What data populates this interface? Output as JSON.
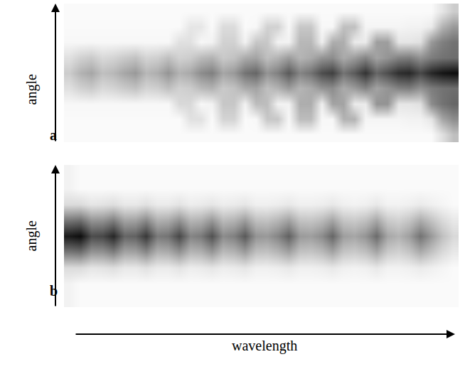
{
  "chart_data": [
    {
      "type": "heatmap",
      "panel": "a",
      "y_label": "angle",
      "tick_labels": false,
      "color": "#000000",
      "zlim": [
        0,
        100
      ],
      "cells": [
        [
          2,
          2,
          2,
          2,
          2,
          2,
          2,
          2,
          2,
          2,
          2,
          2,
          2,
          2,
          2,
          2,
          2,
          2,
          2,
          2,
          2,
          2,
          2,
          2,
          2,
          2,
          2,
          2,
          2,
          2,
          2,
          2,
          2,
          2,
          12,
          25
        ],
        [
          2,
          2,
          2,
          2,
          2,
          2,
          2,
          2,
          2,
          2,
          2,
          12,
          12,
          2,
          17,
          17,
          2,
          3,
          22,
          22,
          3,
          26,
          26,
          3,
          3,
          30,
          30,
          4,
          4,
          4,
          4,
          5,
          5,
          10,
          35,
          45
        ],
        [
          3,
          3,
          3,
          3,
          3,
          3,
          3,
          3,
          3,
          3,
          15,
          15,
          3,
          5,
          22,
          22,
          5,
          26,
          26,
          5,
          5,
          32,
          32,
          6,
          36,
          36,
          8,
          8,
          42,
          42,
          10,
          10,
          12,
          45,
          55,
          60
        ],
        [
          12,
          18,
          21,
          15,
          17,
          21,
          24,
          17,
          19,
          25,
          18,
          20,
          27,
          30,
          21,
          24,
          33,
          36,
          25,
          30,
          39,
          29,
          33,
          42,
          45,
          33,
          39,
          48,
          36,
          42,
          49,
          51,
          43,
          51,
          55,
          57
        ],
        [
          20,
          30,
          35,
          25,
          28,
          35,
          40,
          28,
          32,
          42,
          30,
          34,
          45,
          50,
          35,
          40,
          55,
          60,
          42,
          50,
          65,
          48,
          55,
          70,
          75,
          55,
          65,
          80,
          60,
          70,
          82,
          85,
          72,
          85,
          92,
          95
        ],
        [
          12,
          18,
          21,
          15,
          17,
          21,
          24,
          17,
          19,
          25,
          18,
          20,
          27,
          30,
          21,
          24,
          33,
          36,
          25,
          30,
          39,
          29,
          33,
          42,
          45,
          33,
          39,
          48,
          36,
          42,
          49,
          51,
          43,
          51,
          55,
          57
        ],
        [
          3,
          3,
          3,
          3,
          3,
          3,
          3,
          3,
          3,
          3,
          12,
          12,
          3,
          5,
          18,
          18,
          5,
          22,
          22,
          5,
          5,
          28,
          28,
          6,
          32,
          32,
          8,
          8,
          38,
          38,
          10,
          10,
          12,
          40,
          50,
          55
        ],
        [
          2,
          2,
          2,
          2,
          2,
          2,
          2,
          2,
          2,
          2,
          2,
          10,
          10,
          2,
          14,
          14,
          2,
          3,
          18,
          18,
          3,
          22,
          22,
          3,
          3,
          25,
          25,
          4,
          4,
          4,
          4,
          5,
          5,
          8,
          30,
          40
        ],
        [
          2,
          2,
          2,
          2,
          2,
          2,
          2,
          2,
          2,
          2,
          2,
          2,
          2,
          2,
          2,
          2,
          2,
          2,
          2,
          2,
          2,
          2,
          2,
          2,
          2,
          2,
          2,
          2,
          2,
          2,
          2,
          2,
          2,
          2,
          10,
          20
        ]
      ]
    },
    {
      "type": "heatmap",
      "panel": "b",
      "y_label": "angle",
      "x_label": "wavelength",
      "tick_labels": false,
      "color": "#000000",
      "zlim": [
        0,
        100
      ],
      "cells": [
        [
          5,
          2,
          2,
          2,
          2,
          2,
          2,
          2,
          2,
          2,
          2,
          2,
          2,
          2,
          2,
          2,
          2,
          2,
          2,
          2,
          2,
          2,
          2,
          2,
          2,
          2,
          2,
          2,
          2,
          2,
          2,
          2,
          2,
          2,
          2,
          2
        ],
        [
          5,
          2,
          2,
          2,
          2,
          2,
          2,
          2,
          2,
          2,
          2,
          2,
          2,
          2,
          2,
          2,
          2,
          2,
          2,
          2,
          2,
          2,
          2,
          2,
          2,
          2,
          2,
          2,
          2,
          2,
          2,
          2,
          2,
          2,
          2,
          2
        ],
        [
          14,
          14,
          10,
          11,
          13,
          9,
          9,
          12,
          8,
          8,
          11,
          7,
          8,
          10,
          7,
          8,
          10,
          6,
          6,
          7,
          9,
          6,
          6,
          7,
          9,
          6,
          5,
          6,
          9,
          5,
          5,
          6,
          8,
          6,
          4,
          2
        ],
        [
          54,
          57,
          42,
          43,
          51,
          36,
          37,
          47,
          31,
          33,
          43,
          29,
          31,
          41,
          27,
          30,
          39,
          25,
          24,
          29,
          37,
          24,
          23,
          27,
          36,
          23,
          21,
          25,
          35,
          21,
          18,
          23,
          33,
          24,
          15,
          9
        ],
        [
          90,
          95,
          70,
          72,
          85,
          60,
          62,
          78,
          52,
          55,
          72,
          48,
          52,
          68,
          45,
          50,
          65,
          42,
          40,
          48,
          62,
          40,
          38,
          45,
          60,
          38,
          35,
          42,
          58,
          35,
          30,
          38,
          55,
          40,
          25,
          15
        ],
        [
          54,
          57,
          42,
          43,
          51,
          36,
          37,
          47,
          31,
          33,
          43,
          29,
          31,
          41,
          27,
          30,
          39,
          25,
          24,
          29,
          37,
          24,
          23,
          27,
          36,
          23,
          21,
          25,
          35,
          21,
          18,
          23,
          33,
          24,
          15,
          9
        ],
        [
          14,
          14,
          10,
          11,
          13,
          9,
          9,
          12,
          8,
          8,
          11,
          7,
          8,
          10,
          7,
          8,
          10,
          6,
          6,
          7,
          9,
          6,
          6,
          7,
          9,
          6,
          5,
          6,
          9,
          5,
          5,
          6,
          8,
          6,
          4,
          2
        ],
        [
          5,
          2,
          2,
          2,
          2,
          2,
          2,
          2,
          2,
          2,
          2,
          2,
          2,
          2,
          2,
          2,
          2,
          2,
          2,
          2,
          2,
          2,
          2,
          2,
          2,
          2,
          2,
          2,
          2,
          2,
          2,
          2,
          2,
          2,
          2,
          2
        ],
        [
          5,
          2,
          2,
          2,
          2,
          2,
          2,
          2,
          2,
          2,
          2,
          2,
          2,
          2,
          2,
          2,
          2,
          2,
          2,
          2,
          2,
          2,
          2,
          2,
          2,
          2,
          2,
          2,
          2,
          2,
          2,
          2,
          2,
          2,
          2,
          2
        ]
      ]
    }
  ]
}
